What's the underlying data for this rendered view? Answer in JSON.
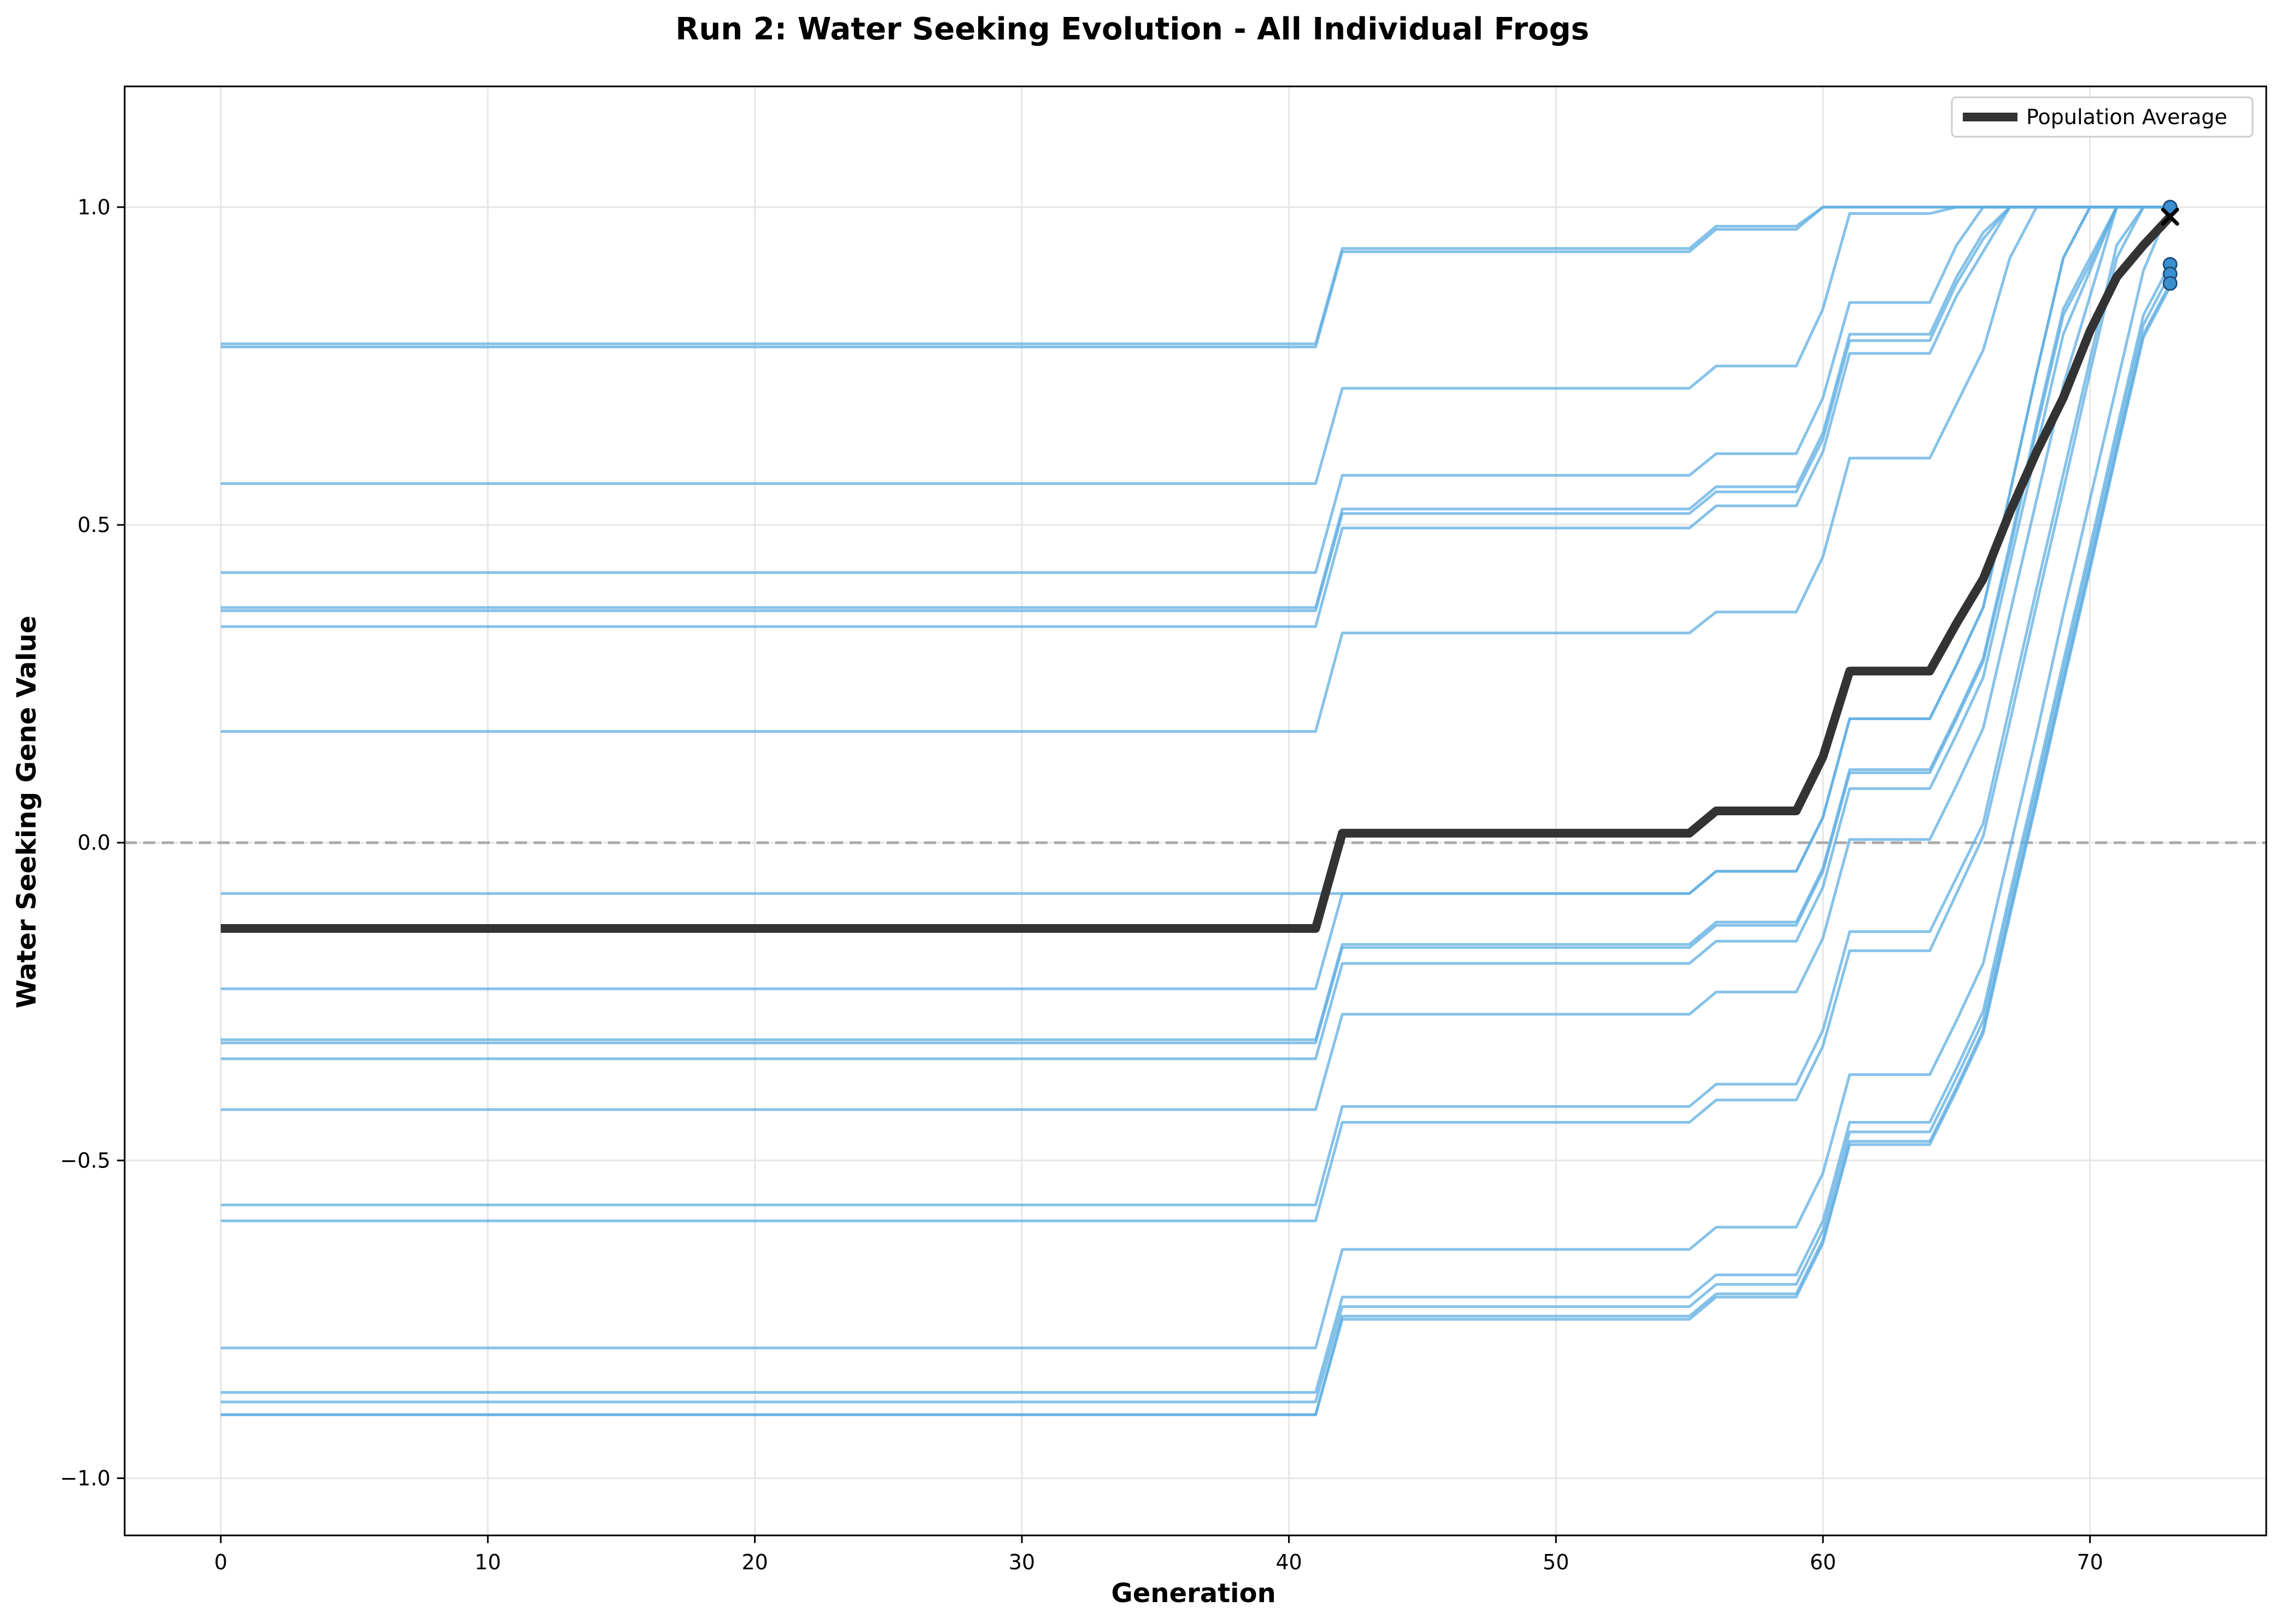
{
  "chart_data": {
    "type": "line",
    "title": "Run 2: Water Seeking Evolution - All Individual Frogs",
    "xlabel": "Generation",
    "ylabel": "Water Seeking Gene Value",
    "xlim": [
      -3.6,
      76.6
    ],
    "ylim": [
      -1.09,
      1.19
    ],
    "xticks": [
      0,
      10,
      20,
      30,
      40,
      50,
      60,
      70
    ],
    "yticks": [
      -1.0,
      -0.5,
      0.0,
      0.5,
      1.0
    ],
    "ytick_labels": [
      "−1.0",
      "−0.5",
      "0.0",
      "0.5",
      "1.0"
    ],
    "grid": true,
    "reference_line_y": 0.0,
    "legend": {
      "position": "top-right",
      "entries": [
        "Population Average"
      ]
    },
    "colors": {
      "individual": "#5dade2",
      "average": "#333333",
      "zero_line": "#aaaaaa"
    },
    "generations": [
      0,
      41,
      42,
      55,
      56,
      59,
      60,
      61,
      64,
      65,
      66,
      67,
      68,
      69,
      70,
      71,
      72,
      73
    ],
    "individual_series": [
      [
        0.785,
        0.785,
        0.935,
        0.935,
        0.97,
        0.97,
        1.0,
        1.0,
        1.0,
        1.0,
        1.0,
        1.0,
        1.0,
        1.0,
        1.0,
        1.0,
        1.0,
        1.0
      ],
      [
        0.78,
        0.78,
        0.93,
        0.93,
        0.965,
        0.965,
        1.0,
        1.0,
        1.0,
        1.0,
        1.0,
        1.0,
        1.0,
        1.0,
        1.0,
        1.0,
        1.0,
        1.0
      ],
      [
        0.565,
        0.565,
        0.715,
        0.715,
        0.75,
        0.75,
        0.84,
        0.99,
        0.99,
        1.0,
        1.0,
        1.0,
        1.0,
        1.0,
        1.0,
        1.0,
        1.0,
        1.0
      ],
      [
        0.425,
        0.425,
        0.578,
        0.578,
        0.612,
        0.612,
        0.7,
        0.85,
        0.85,
        0.94,
        1.0,
        1.0,
        1.0,
        1.0,
        1.0,
        1.0,
        1.0,
        1.0
      ],
      [
        0.37,
        0.37,
        0.525,
        0.525,
        0.56,
        0.56,
        0.645,
        0.8,
        0.8,
        0.89,
        0.96,
        1.0,
        1.0,
        1.0,
        1.0,
        1.0,
        1.0,
        1.0
      ],
      [
        0.365,
        0.365,
        0.518,
        0.518,
        0.552,
        0.552,
        0.635,
        0.79,
        0.79,
        0.88,
        0.95,
        1.0,
        1.0,
        1.0,
        1.0,
        1.0,
        1.0,
        1.0
      ],
      [
        0.34,
        0.34,
        0.495,
        0.495,
        0.53,
        0.53,
        0.615,
        0.77,
        0.77,
        0.86,
        0.93,
        1.0,
        1.0,
        1.0,
        1.0,
        1.0,
        1.0,
        1.0
      ],
      [
        0.175,
        0.175,
        0.33,
        0.33,
        0.363,
        0.363,
        0.45,
        0.605,
        0.605,
        0.69,
        0.775,
        0.92,
        1.0,
        1.0,
        1.0,
        1.0,
        1.0,
        1.0
      ],
      [
        -0.08,
        -0.08,
        -0.08,
        -0.08,
        -0.045,
        -0.045,
        0.04,
        0.195,
        0.195,
        0.28,
        0.37,
        0.55,
        0.74,
        0.92,
        1.0,
        1.0,
        1.0,
        1.0
      ],
      [
        -0.23,
        -0.23,
        -0.08,
        -0.08,
        -0.045,
        -0.045,
        0.04,
        0.195,
        0.195,
        0.28,
        0.37,
        0.55,
        0.74,
        0.92,
        1.0,
        1.0,
        1.0,
        1.0
      ],
      [
        -0.31,
        -0.31,
        -0.16,
        -0.16,
        -0.125,
        -0.125,
        -0.04,
        0.115,
        0.115,
        0.2,
        0.29,
        0.47,
        0.66,
        0.84,
        0.92,
        1.0,
        1.0,
        1.0
      ],
      [
        -0.315,
        -0.315,
        -0.165,
        -0.165,
        -0.13,
        -0.13,
        -0.045,
        0.11,
        0.11,
        0.195,
        0.285,
        0.46,
        0.65,
        0.83,
        0.91,
        1.0,
        1.0,
        1.0
      ],
      [
        -0.34,
        -0.34,
        -0.19,
        -0.19,
        -0.155,
        -0.155,
        -0.07,
        0.085,
        0.085,
        0.17,
        0.26,
        0.44,
        0.62,
        0.8,
        0.9,
        1.0,
        1.0,
        1.0
      ],
      [
        -0.42,
        -0.42,
        -0.27,
        -0.27,
        -0.235,
        -0.235,
        -0.15,
        0.005,
        0.005,
        0.09,
        0.18,
        0.36,
        0.54,
        0.72,
        0.86,
        1.0,
        1.0,
        1.0
      ],
      [
        -0.57,
        -0.57,
        -0.415,
        -0.415,
        -0.38,
        -0.38,
        -0.295,
        -0.14,
        -0.14,
        -0.055,
        0.03,
        0.215,
        0.4,
        0.58,
        0.76,
        0.94,
        1.0,
        1.0
      ],
      [
        -0.595,
        -0.595,
        -0.44,
        -0.44,
        -0.405,
        -0.405,
        -0.32,
        -0.17,
        -0.17,
        -0.08,
        0.01,
        0.19,
        0.375,
        0.555,
        0.74,
        0.92,
        1.0,
        1.0
      ],
      [
        -0.795,
        -0.795,
        -0.64,
        -0.64,
        -0.605,
        -0.605,
        -0.52,
        -0.365,
        -0.365,
        -0.28,
        -0.19,
        -0.01,
        0.17,
        0.36,
        0.54,
        0.72,
        0.9,
        1.0
      ],
      [
        -0.865,
        -0.865,
        -0.715,
        -0.715,
        -0.68,
        -0.68,
        -0.595,
        -0.44,
        -0.44,
        -0.355,
        -0.265,
        -0.08,
        0.1,
        0.285,
        0.465,
        0.65,
        0.83,
        0.91
      ],
      [
        -0.88,
        -0.88,
        -0.73,
        -0.73,
        -0.695,
        -0.695,
        -0.61,
        -0.455,
        -0.455,
        -0.37,
        -0.28,
        -0.095,
        0.085,
        0.27,
        0.45,
        0.635,
        0.815,
        0.895
      ],
      [
        -0.9,
        -0.9,
        -0.745,
        -0.745,
        -0.71,
        -0.71,
        -0.625,
        -0.47,
        -0.47,
        -0.385,
        -0.295,
        -0.11,
        0.07,
        0.255,
        0.435,
        0.62,
        0.8,
        0.88
      ],
      [
        -0.9,
        -0.9,
        -0.75,
        -0.75,
        -0.715,
        -0.715,
        -0.63,
        -0.475,
        -0.475,
        -0.39,
        -0.3,
        -0.115,
        0.065,
        0.25,
        0.43,
        0.615,
        0.795,
        0.875
      ]
    ],
    "series": [
      {
        "name": "Population Average",
        "x": [
          0,
          41,
          42,
          55,
          56,
          59,
          60,
          61,
          64,
          65,
          66,
          67,
          68,
          69,
          70,
          71,
          72,
          73
        ],
        "values": [
          -0.135,
          -0.135,
          0.015,
          0.015,
          0.05,
          0.05,
          0.135,
          0.27,
          0.27,
          0.345,
          0.415,
          0.52,
          0.615,
          0.7,
          0.805,
          0.89,
          0.94,
          0.985
        ]
      }
    ],
    "final_points": [
      1.0,
      0.91,
      0.895,
      0.88
    ],
    "final_average_marker": 0.985
  }
}
